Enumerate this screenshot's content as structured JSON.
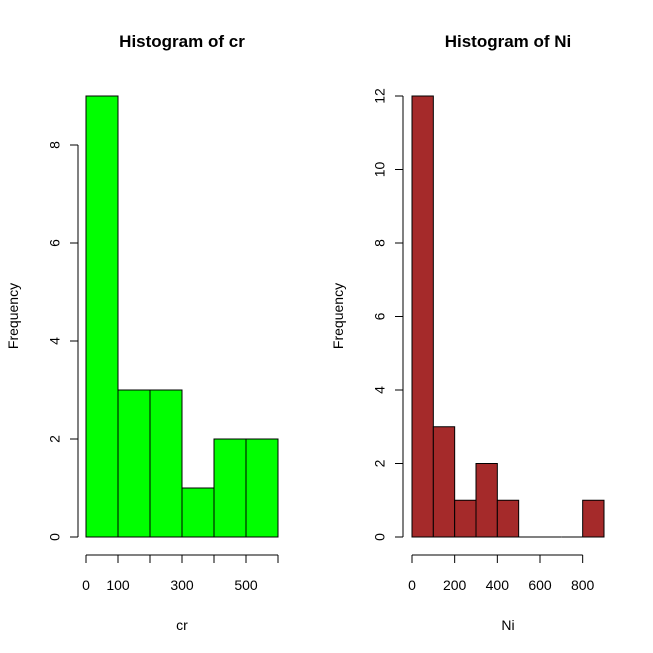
{
  "chart_data": [
    {
      "type": "bar",
      "title": "Histogram of cr",
      "xlabel": "cr",
      "ylabel": "Frequency",
      "bin_edges": [
        0,
        100,
        200,
        300,
        400,
        500,
        600
      ],
      "values": [
        9,
        3,
        3,
        1,
        2,
        2
      ],
      "xlim": [
        0,
        600
      ],
      "ylim": [
        0,
        9
      ],
      "x_ticks": [
        0,
        100,
        200,
        300,
        400,
        500,
        600
      ],
      "x_tick_labels": [
        "0",
        "100",
        "",
        "300",
        "",
        "500",
        ""
      ],
      "y_ticks": [
        0,
        2,
        4,
        6,
        8
      ],
      "y_tick_labels": [
        "0",
        "2",
        "4",
        "6",
        "8"
      ],
      "color": "#00ff00",
      "grid": false
    },
    {
      "type": "bar",
      "title": "Histogram of Ni",
      "xlabel": "Ni",
      "ylabel": "Frequency",
      "bin_edges": [
        0,
        100,
        200,
        300,
        400,
        500,
        600,
        700,
        800,
        900
      ],
      "values": [
        12,
        3,
        1,
        2,
        1,
        0,
        0,
        0,
        1
      ],
      "xlim": [
        0,
        900
      ],
      "ylim": [
        0,
        12
      ],
      "x_ticks": [
        0,
        200,
        400,
        600,
        800
      ],
      "x_tick_labels": [
        "0",
        "200",
        "400",
        "600",
        "800"
      ],
      "y_ticks": [
        0,
        2,
        4,
        6,
        8,
        10,
        12
      ],
      "y_tick_labels": [
        "0",
        "2",
        "4",
        "6",
        "8",
        "10",
        "12"
      ],
      "color": "#a52a2a",
      "grid": false
    }
  ]
}
